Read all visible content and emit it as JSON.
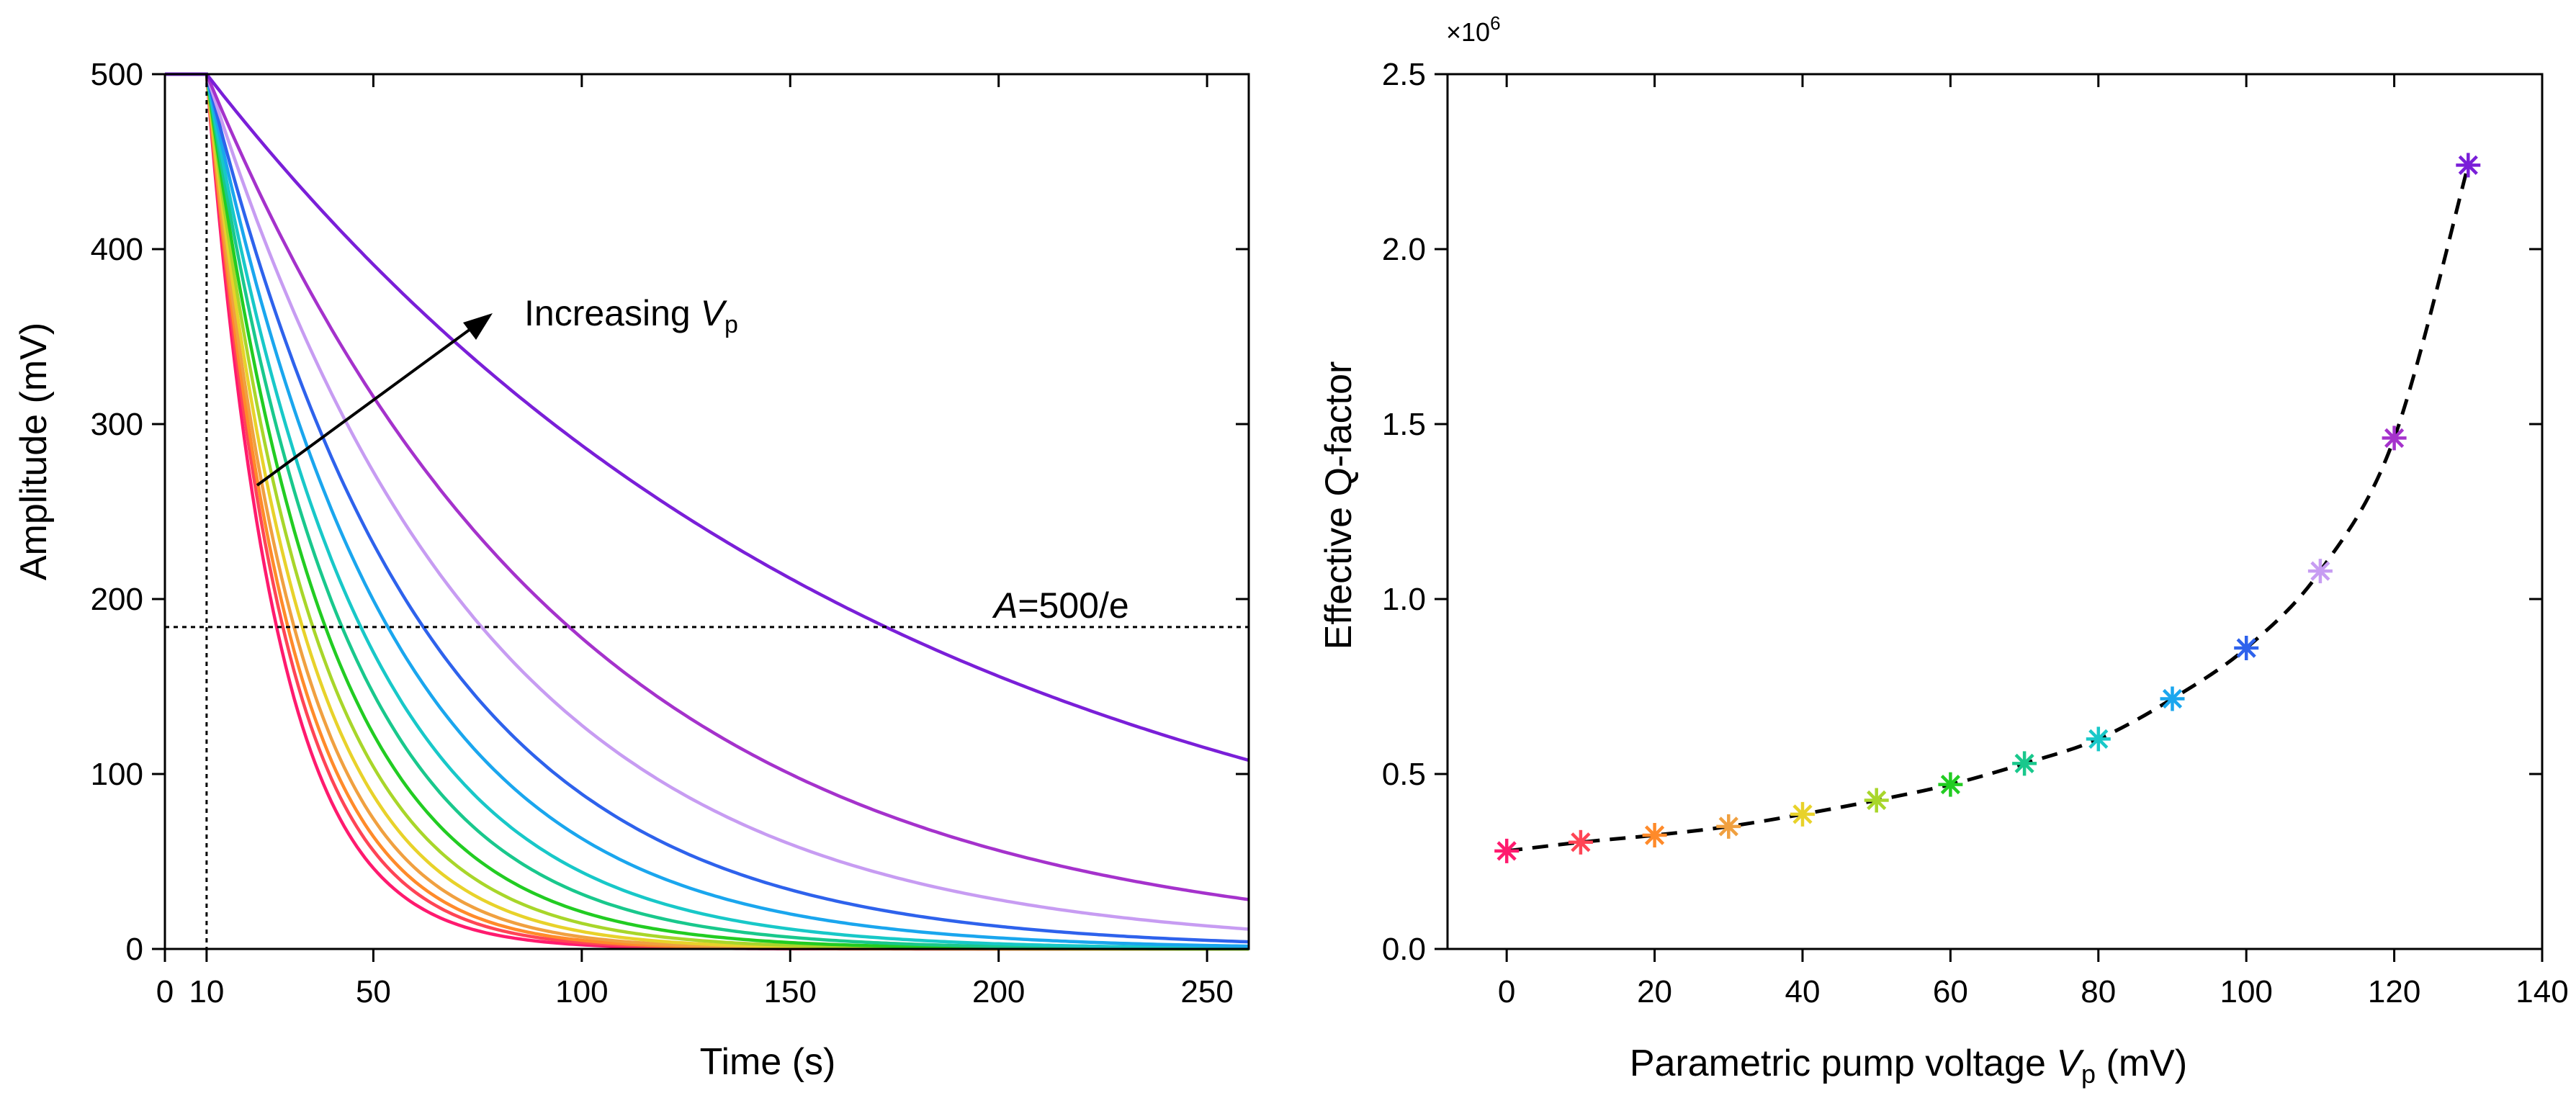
{
  "chart_data": [
    {
      "type": "line",
      "panel": "left",
      "xlabel": "Time (s)",
      "ylabel": "Amplitude (mV)",
      "xlim": [
        0,
        260
      ],
      "ylim": [
        0,
        500
      ],
      "x_ticks": [
        "0",
        "10",
        "50",
        "100",
        "150",
        "200",
        "250"
      ],
      "x_tick_values": [
        0,
        10,
        50,
        100,
        150,
        200,
        250
      ],
      "y_ticks": [
        "0",
        "100",
        "200",
        "300",
        "400",
        "500"
      ],
      "y_tick_values": [
        0,
        100,
        200,
        300,
        400,
        500
      ],
      "grid": false,
      "ringdown_start_s": 10,
      "initial_amplitude_mV": 500,
      "threshold": {
        "value": 184,
        "label_prefix": "A",
        "label_suffix": "=500/e"
      },
      "arrow_label": {
        "main": "Increasing ",
        "var": "V",
        "sub": "p"
      },
      "series": [
        {
          "vp": 0,
          "tau": 16.8,
          "color": "#ff1a6e"
        },
        {
          "vp": 10,
          "tau": 18.3,
          "color": "#ff4455"
        },
        {
          "vp": 20,
          "tau": 19.5,
          "color": "#ff8a2a"
        },
        {
          "vp": 30,
          "tau": 21.0,
          "color": "#f0a040"
        },
        {
          "vp": 40,
          "tau": 23.0,
          "color": "#e8d22a"
        },
        {
          "vp": 50,
          "tau": 25.5,
          "color": "#a8d62a"
        },
        {
          "vp": 60,
          "tau": 28.5,
          "color": "#22cc22"
        },
        {
          "vp": 70,
          "tau": 32.5,
          "color": "#19c88c"
        },
        {
          "vp": 80,
          "tau": 37.0,
          "color": "#18c8c8"
        },
        {
          "vp": 90,
          "tau": 43.5,
          "color": "#1aa6ee"
        },
        {
          "vp": 100,
          "tau": 52.0,
          "color": "#2e62ec"
        },
        {
          "vp": 110,
          "tau": 66.0,
          "color": "#c79cf2"
        },
        {
          "vp": 120,
          "tau": 87.0,
          "color": "#a532cc"
        },
        {
          "vp": 130,
          "tau": 163.0,
          "color": "#7a1fd8"
        }
      ]
    },
    {
      "type": "scatter",
      "panel": "right",
      "xlabel": "Parametric pump voltage ",
      "xlabel_var": "V",
      "xlabel_sub": "p",
      "xlabel_unit": " (mV)",
      "ylabel": "Effective Q-factor",
      "y_multiplier": {
        "base": "×10",
        "exp": "6"
      },
      "xlim": [
        -8,
        140
      ],
      "ylim": [
        0,
        2.5
      ],
      "x_ticks": [
        "0",
        "20",
        "40",
        "60",
        "80",
        "100",
        "120",
        "140"
      ],
      "x_tick_values": [
        0,
        20,
        40,
        60,
        80,
        100,
        120,
        140
      ],
      "y_ticks": [
        "0.0",
        "0.5",
        "1.0",
        "1.5",
        "2.0",
        "2.5"
      ],
      "y_tick_values": [
        0,
        0.5,
        1.0,
        1.5,
        2.0,
        2.5
      ],
      "grid": false,
      "marker": "asterisk",
      "fit": "dashed",
      "x": [
        0,
        10,
        20,
        30,
        40,
        50,
        60,
        70,
        80,
        90,
        100,
        110,
        120,
        130
      ],
      "y": [
        0.28,
        0.305,
        0.325,
        0.35,
        0.385,
        0.425,
        0.47,
        0.53,
        0.6,
        0.715,
        0.86,
        1.08,
        1.46,
        2.24
      ],
      "colors": [
        "#ff1a6e",
        "#ff4455",
        "#ff8a2a",
        "#f0a040",
        "#e8d22a",
        "#a8d62a",
        "#22cc22",
        "#19c88c",
        "#18c8c8",
        "#1aa6ee",
        "#2e62ec",
        "#c79cf2",
        "#a532cc",
        "#7a1fd8"
      ]
    }
  ]
}
